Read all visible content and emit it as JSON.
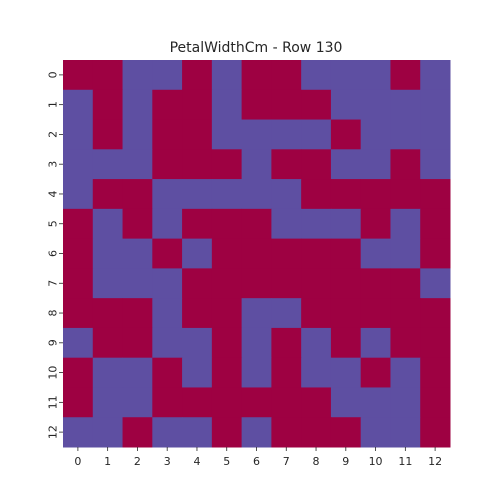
{
  "chart_data": {
    "type": "heatmap",
    "title": "PetalWidthCm - Row 130",
    "xlabel": "",
    "ylabel": "",
    "x_ticks": [
      "0",
      "1",
      "2",
      "3",
      "4",
      "5",
      "6",
      "7",
      "8",
      "9",
      "10",
      "11",
      "12"
    ],
    "y_ticks": [
      "0",
      "1",
      "2",
      "3",
      "4",
      "5",
      "6",
      "7",
      "8",
      "9",
      "10",
      "11",
      "12"
    ],
    "colorbar": false,
    "colors": {
      "high": "#9e0142",
      "low": "#5e4fa2"
    },
    "values": [
      [
        1,
        1,
        0,
        0,
        1,
        0,
        1,
        1,
        0,
        0,
        0,
        1,
        0
      ],
      [
        0,
        1,
        0,
        1,
        1,
        0,
        1,
        1,
        1,
        0,
        0,
        0,
        0
      ],
      [
        0,
        1,
        0,
        1,
        1,
        0,
        0,
        0,
        0,
        1,
        0,
        0,
        0
      ],
      [
        0,
        0,
        0,
        1,
        1,
        1,
        0,
        1,
        1,
        0,
        0,
        1,
        0
      ],
      [
        0,
        1,
        1,
        0,
        0,
        0,
        0,
        0,
        1,
        1,
        1,
        1,
        1
      ],
      [
        1,
        0,
        1,
        0,
        1,
        1,
        1,
        0,
        0,
        0,
        1,
        0,
        1
      ],
      [
        1,
        0,
        0,
        1,
        0,
        1,
        1,
        1,
        1,
        1,
        0,
        0,
        1
      ],
      [
        1,
        0,
        0,
        0,
        1,
        1,
        1,
        1,
        1,
        1,
        1,
        1,
        0
      ],
      [
        1,
        1,
        1,
        0,
        1,
        1,
        0,
        0,
        1,
        1,
        1,
        1,
        1
      ],
      [
        0,
        1,
        1,
        0,
        0,
        1,
        0,
        1,
        0,
        1,
        0,
        1,
        1
      ],
      [
        1,
        0,
        0,
        1,
        0,
        1,
        0,
        1,
        0,
        0,
        1,
        0,
        1
      ],
      [
        1,
        0,
        0,
        1,
        1,
        1,
        1,
        1,
        1,
        0,
        0,
        0,
        1
      ],
      [
        0,
        0,
        1,
        0,
        0,
        1,
        0,
        1,
        1,
        1,
        0,
        0,
        1
      ]
    ]
  }
}
